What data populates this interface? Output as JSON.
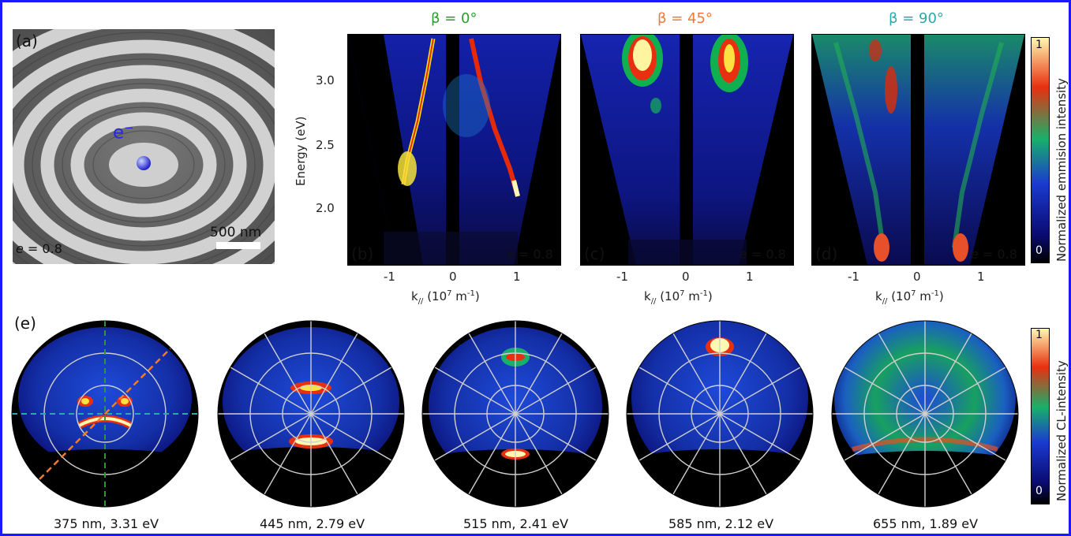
{
  "panel_a": {
    "letter": "(a)",
    "electron_label": "e",
    "electron_charge": "−",
    "scale_bar": "500 nm",
    "e_label_var": "e",
    "e_label_value": " = 0.8"
  },
  "panels_bcd": [
    {
      "letter": "(b)",
      "title": "β = 0°",
      "title_color": "#2e9a2e",
      "e_var": "e",
      "e_value": " = 0.8"
    },
    {
      "letter": "(c)",
      "title": "β = 45°",
      "title_color": "#ef7a36",
      "e_var": "e",
      "e_value": " = 0.8"
    },
    {
      "letter": "(d)",
      "title": "β = 90°",
      "title_color": "#2aaaa8",
      "e_var": "e",
      "e_value": " = 0.8"
    }
  ],
  "axes": {
    "y_label": "Energy (eV)",
    "y_ticks": [
      "3.0",
      "2.5",
      "2.0"
    ],
    "x_ticks": [
      "-1",
      "0",
      "1"
    ],
    "x_label_main": "k",
    "x_label_sub": "//",
    "x_label_units": " (10",
    "x_label_exp": "7",
    "x_label_end": " m",
    "x_label_exp2": "-1",
    "x_label_close": ")"
  },
  "colorbar_top": {
    "label": "Normalized emmision intensity",
    "max": "1",
    "min": "0"
  },
  "colorbar_bottom": {
    "label": "Normalized CL-intensity",
    "max": "1",
    "min": "0"
  },
  "panel_e": {
    "letter": "(e)",
    "captions": [
      "375 nm, 3.31 eV",
      "445 nm, 2.79 eV",
      "515 nm, 2.41 eV",
      "585 nm, 2.12 eV",
      "655 nm, 1.89 eV"
    ]
  },
  "colors": {
    "frame": "#1a1aff",
    "green_dash": "#2e9a2e",
    "orange_dash": "#ef7a36",
    "teal_dash": "#2aaaa8"
  }
}
